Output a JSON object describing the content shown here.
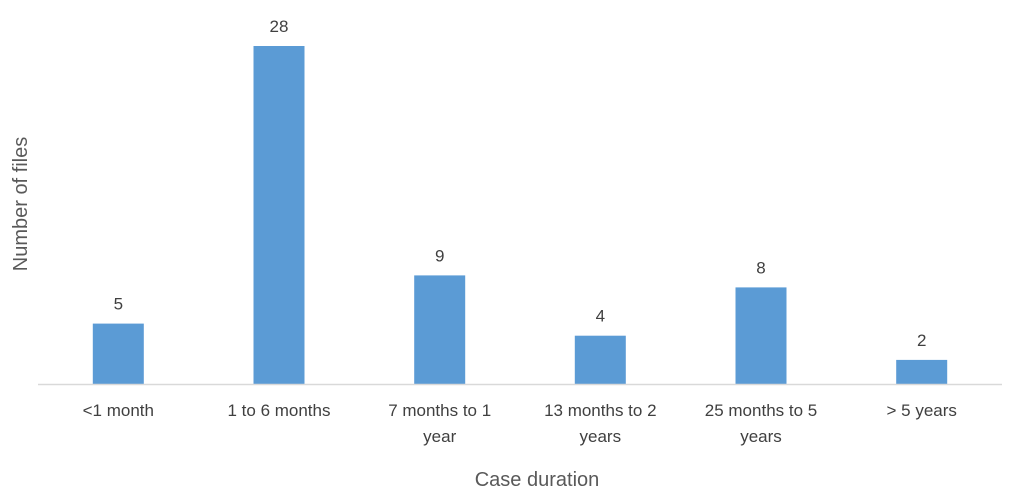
{
  "chart_data": {
    "type": "bar",
    "title": "",
    "xlabel": "Case duration",
    "ylabel": "Number of files",
    "categories": [
      "<1 month",
      "1 to 6 months",
      "7 months to 1 year",
      "13 months to 2 years",
      "25 months to 5 years",
      "> 5 years"
    ],
    "category_lines": [
      [
        "<1 month"
      ],
      [
        "1 to 6 months"
      ],
      [
        "7 months to 1",
        "year"
      ],
      [
        "13 months to 2",
        "years"
      ],
      [
        "25 months to 5",
        "years"
      ],
      [
        "> 5 years"
      ]
    ],
    "values": [
      5,
      28,
      9,
      4,
      8,
      2
    ],
    "data_labels": [
      "5",
      "28",
      "9",
      "4",
      "8",
      "2"
    ],
    "ylim": [
      0,
      28
    ],
    "grid": false,
    "legend": "none",
    "bar_color": "#5B9BD5",
    "axis_color": "#D9D9D9"
  }
}
